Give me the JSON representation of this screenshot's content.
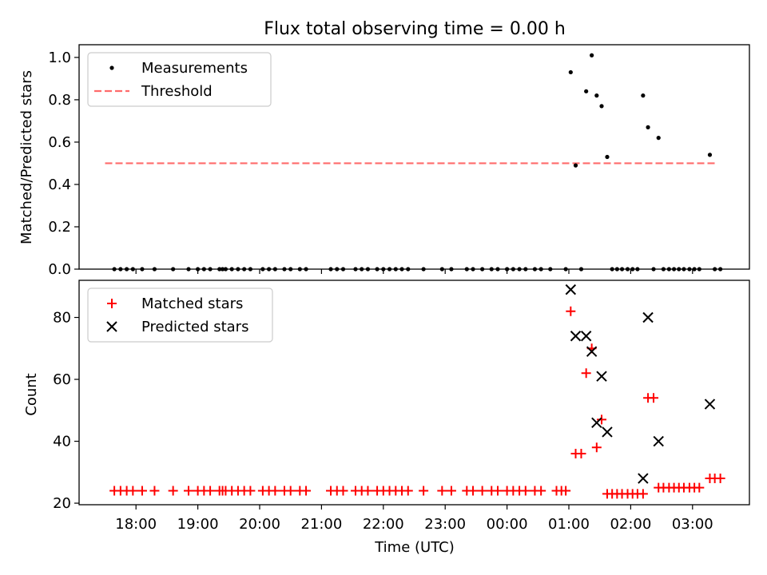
{
  "chart_data": [
    {
      "type": "scatter",
      "title": "Flux total observing time = 0.00 h",
      "xlabel": "",
      "ylabel": "Matched/Predicted stars",
      "xlim": [
        17.08,
        27.92
      ],
      "ylim": [
        0.0,
        1.06
      ],
      "yticks": [
        0.0,
        0.2,
        0.4,
        0.6,
        0.8,
        1.0
      ],
      "ytick_labels": [
        "0.0",
        "0.2",
        "0.4",
        "0.6",
        "0.8",
        "1.0"
      ],
      "legend_position": "top-left",
      "series": [
        {
          "name": "Measurements",
          "marker": "dot",
          "color": "#000000",
          "x": [
            17.65,
            17.75,
            17.85,
            17.95,
            18.1,
            18.3,
            18.6,
            18.85,
            19.0,
            19.1,
            19.2,
            19.35,
            19.4,
            19.45,
            19.55,
            19.65,
            19.75,
            19.85,
            20.05,
            20.15,
            20.25,
            20.4,
            20.5,
            20.65,
            20.75,
            21.15,
            21.25,
            21.35,
            21.55,
            21.65,
            21.75,
            21.9,
            22.0,
            22.1,
            22.2,
            22.3,
            22.4,
            22.65,
            22.95,
            23.1,
            23.35,
            23.45,
            23.6,
            23.75,
            23.85,
            24.0,
            24.1,
            24.2,
            24.3,
            24.45,
            24.55,
            24.7,
            24.95,
            25.03,
            25.11,
            25.2,
            25.28,
            25.37,
            25.45,
            25.53,
            25.62,
            25.7,
            25.78,
            25.86,
            25.95,
            26.03,
            26.11,
            26.2,
            26.28,
            26.37,
            26.45,
            26.53,
            26.62,
            26.7,
            26.78,
            26.86,
            26.95,
            27.03,
            27.11,
            27.28,
            27.36,
            27.45
          ],
          "y": [
            0,
            0,
            0,
            0,
            0,
            0,
            0,
            0,
            0,
            0,
            0,
            0,
            0,
            0,
            0,
            0,
            0,
            0,
            0,
            0,
            0,
            0,
            0,
            0,
            0,
            0,
            0,
            0,
            0,
            0,
            0,
            0,
            0,
            0,
            0,
            0,
            0,
            0,
            0,
            0,
            0,
            0,
            0,
            0,
            0,
            0,
            0,
            0,
            0,
            0,
            0,
            0,
            0,
            0.93,
            0.49,
            0,
            0.84,
            1.01,
            0.82,
            0.77,
            0.53,
            0,
            0,
            0,
            0,
            0,
            0,
            0.82,
            0.67,
            0,
            0.62,
            0,
            0,
            0,
            0,
            0,
            0,
            0,
            0,
            0.54,
            0,
            0
          ]
        },
        {
          "name": "Threshold",
          "style": "dashed-line",
          "color": "#ff6b6b",
          "x": [
            17.5,
            27.4
          ],
          "y": [
            0.5,
            0.5
          ]
        }
      ]
    },
    {
      "type": "scatter",
      "title": "",
      "xlabel": "Time (UTC)",
      "ylabel": "Count",
      "xlim": [
        17.08,
        27.92
      ],
      "ylim": [
        19.5,
        92
      ],
      "yticks": [
        20,
        40,
        60,
        80
      ],
      "ytick_labels": [
        "20",
        "40",
        "60",
        "80"
      ],
      "xticks": [
        18,
        19,
        20,
        21,
        22,
        23,
        24,
        25,
        26,
        27
      ],
      "xtick_labels": [
        "18:00",
        "19:00",
        "20:00",
        "21:00",
        "22:00",
        "23:00",
        "00:00",
        "01:00",
        "02:00",
        "03:00"
      ],
      "legend_position": "top-left",
      "series": [
        {
          "name": "Matched stars",
          "marker": "plus",
          "color": "#ff0000",
          "x": [
            17.65,
            17.75,
            17.85,
            17.95,
            18.1,
            18.3,
            18.6,
            18.85,
            19.0,
            19.1,
            19.2,
            19.35,
            19.4,
            19.45,
            19.55,
            19.65,
            19.75,
            19.85,
            20.05,
            20.15,
            20.25,
            20.4,
            20.5,
            20.65,
            20.75,
            21.15,
            21.25,
            21.35,
            21.55,
            21.65,
            21.75,
            21.9,
            22.0,
            22.1,
            22.2,
            22.3,
            22.4,
            22.65,
            22.95,
            23.1,
            23.35,
            23.45,
            23.6,
            23.75,
            23.85,
            24.0,
            24.1,
            24.2,
            24.3,
            24.45,
            24.55,
            24.8,
            24.88,
            24.95,
            25.03,
            25.11,
            25.2,
            25.28,
            25.37,
            25.45,
            25.53,
            25.62,
            25.7,
            25.78,
            25.86,
            25.95,
            26.03,
            26.11,
            26.2,
            26.28,
            26.37,
            26.45,
            26.53,
            26.62,
            26.7,
            26.78,
            26.86,
            26.95,
            27.03,
            27.11,
            27.28,
            27.36,
            27.45
          ],
          "y": [
            24,
            24,
            24,
            24,
            24,
            24,
            24,
            24,
            24,
            24,
            24,
            24,
            24,
            24,
            24,
            24,
            24,
            24,
            24,
            24,
            24,
            24,
            24,
            24,
            24,
            24,
            24,
            24,
            24,
            24,
            24,
            24,
            24,
            24,
            24,
            24,
            24,
            24,
            24,
            24,
            24,
            24,
            24,
            24,
            24,
            24,
            24,
            24,
            24,
            24,
            24,
            24,
            24,
            24,
            82,
            36,
            36,
            62,
            70,
            38,
            47,
            23,
            23,
            23,
            23,
            23,
            23,
            23,
            23,
            54,
            54,
            25,
            25,
            25,
            25,
            25,
            25,
            25,
            25,
            25,
            28,
            28,
            28
          ]
        },
        {
          "name": "Predicted stars",
          "marker": "x",
          "color": "#000000",
          "x": [
            25.03,
            25.11,
            25.28,
            25.37,
            25.45,
            25.53,
            25.62,
            26.2,
            26.28,
            26.45,
            27.28
          ],
          "y": [
            89,
            74,
            74,
            69,
            46,
            61,
            43,
            28,
            80,
            40,
            52
          ]
        }
      ]
    }
  ]
}
